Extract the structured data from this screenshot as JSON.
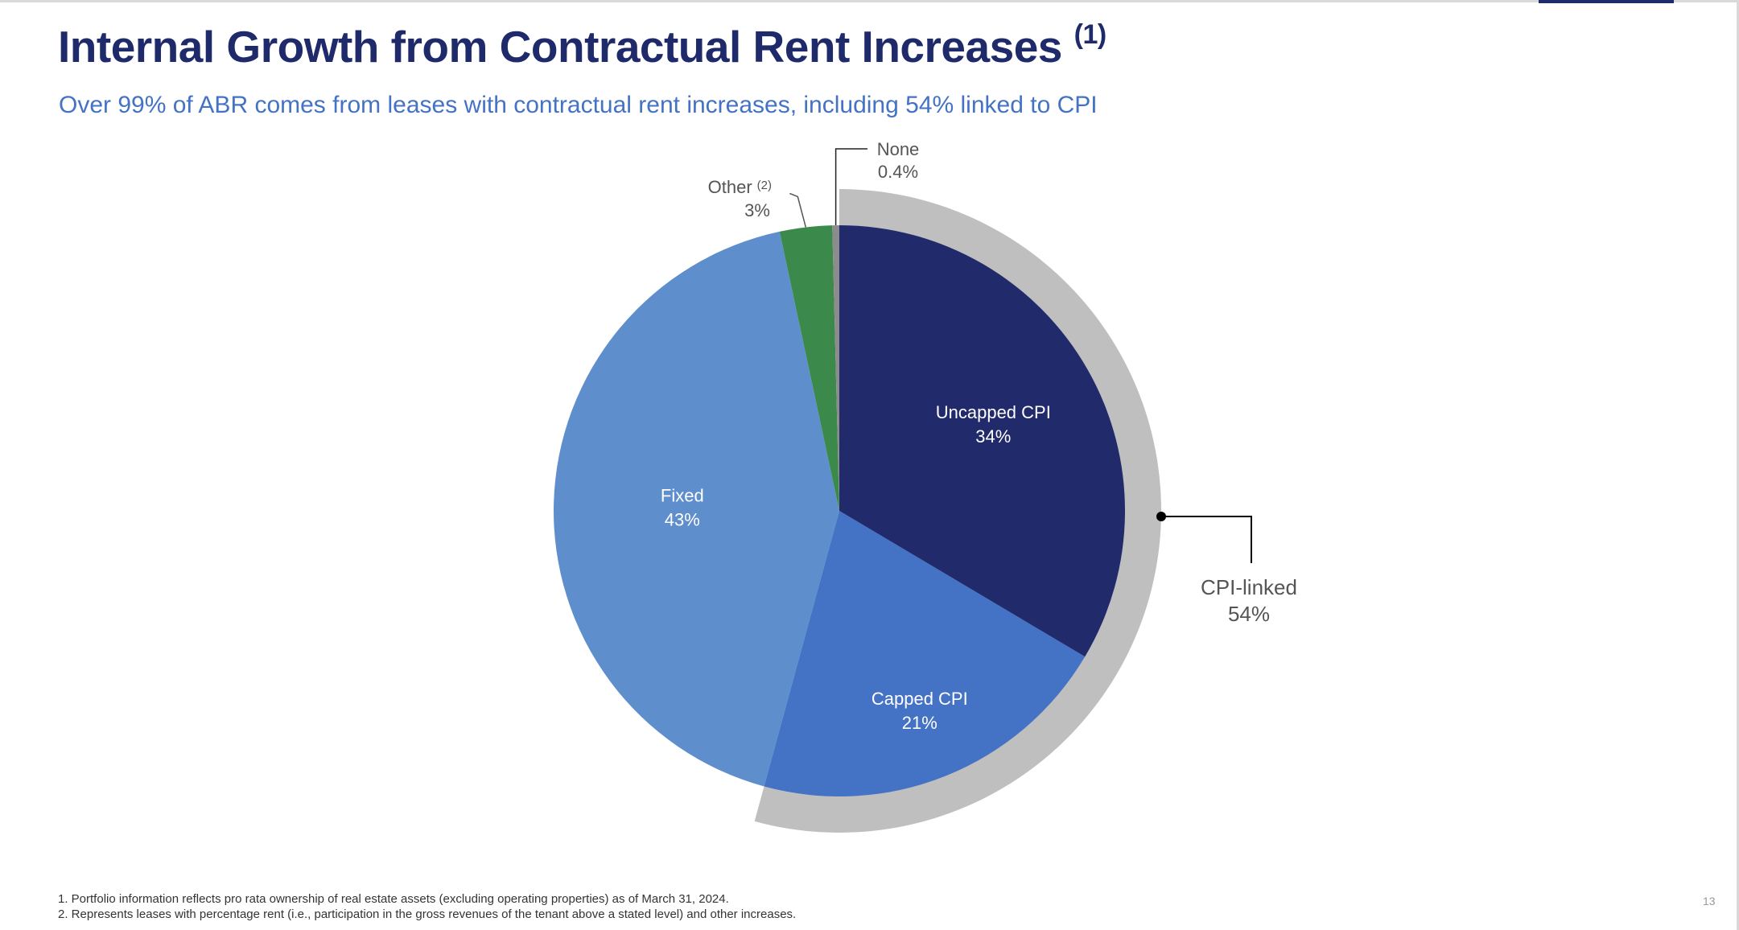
{
  "slide": {
    "title": "Internal Growth from Contractual Rent Increases",
    "title_ref": "(1)",
    "subtitle": "Over 99% of ABR comes from leases with contractual rent increases, including 54% linked to CPI",
    "footnotes": [
      "1.  Portfolio information reflects pro rata ownership of real estate assets (excluding operating properties) as of March 31, 2024.",
      "2. Represents leases with percentage rent (i.e., participation in the gross revenues of the tenant above a stated level) and other increases."
    ],
    "page_number": "13"
  },
  "chart_data": {
    "type": "pie",
    "title": "",
    "slices": [
      {
        "label": "Uncapped CPI",
        "value": 34,
        "display": "34%",
        "color": "#212a6b"
      },
      {
        "label": "Capped CPI",
        "value": 21,
        "display": "21%",
        "color": "#4472c4"
      },
      {
        "label": "Fixed",
        "value": 43,
        "display": "43%",
        "color": "#5e8fcc"
      },
      {
        "label": "Other",
        "ref": "(2)",
        "value": 3,
        "display": "3%",
        "color": "#3b8a4c"
      },
      {
        "label": "None",
        "value": 0.4,
        "display": "0.4%",
        "color": "#8c8c8c"
      }
    ],
    "group_band": {
      "label": "CPI-linked",
      "value": 54,
      "display": "54%",
      "color": "#bfbfbf",
      "covers": [
        "Uncapped CPI",
        "Capped CPI"
      ]
    }
  }
}
